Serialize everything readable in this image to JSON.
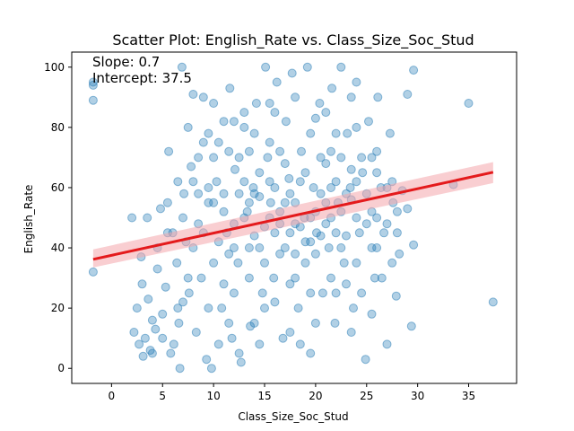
{
  "chart_data": {
    "type": "scatter",
    "title": "Scatter Plot: English_Rate vs. Class_Size_Soc_Stud",
    "xlabel": "Class_Size_Soc_Stud",
    "ylabel": "English_Rate",
    "xlim": [
      -3.9,
      39.7
    ],
    "ylim": [
      -5,
      105
    ],
    "xticks": [
      0,
      5,
      10,
      15,
      20,
      25,
      30,
      35
    ],
    "yticks": [
      0,
      20,
      40,
      60,
      80,
      100
    ],
    "grid": false,
    "annotations": [
      "Slope: 0.7",
      "Intercept: 37.5"
    ],
    "series": [
      {
        "kind": "points",
        "color": "#1f77b4",
        "alpha": 0.35,
        "points": [
          [
            -1.8,
            95
          ],
          [
            -1.8,
            94
          ],
          [
            -1.8,
            89
          ],
          [
            -1.8,
            32
          ],
          [
            2,
            50
          ],
          [
            2.2,
            12
          ],
          [
            2.5,
            20
          ],
          [
            2.7,
            8
          ],
          [
            2.9,
            37
          ],
          [
            3.1,
            4
          ],
          [
            3.3,
            10
          ],
          [
            3.5,
            50
          ],
          [
            3.6,
            23
          ],
          [
            3.8,
            6
          ],
          [
            4,
            16
          ],
          [
            4.3,
            13
          ],
          [
            4.5,
            33
          ],
          [
            4.8,
            53
          ],
          [
            5,
            10
          ],
          [
            5.3,
            27
          ],
          [
            5.6,
            72
          ],
          [
            5.8,
            5
          ],
          [
            6.1,
            8
          ],
          [
            6.4,
            35
          ],
          [
            6.6,
            15
          ],
          [
            6.7,
            0
          ],
          [
            6.9,
            100
          ],
          [
            7.1,
            58
          ],
          [
            7.3,
            42
          ],
          [
            7.6,
            25
          ],
          [
            7.8,
            67
          ],
          [
            8,
            91
          ],
          [
            8.3,
            12
          ],
          [
            8.5,
            48
          ],
          [
            8.8,
            30
          ],
          [
            9,
            90
          ],
          [
            9.3,
            3
          ],
          [
            9.5,
            55
          ],
          [
            9.8,
            0
          ],
          [
            10,
            88
          ],
          [
            10.3,
            62
          ],
          [
            10.5,
            75
          ],
          [
            10.8,
            20
          ],
          [
            11,
            58
          ],
          [
            11.3,
            45
          ],
          [
            11.6,
            93
          ],
          [
            11.8,
            10
          ],
          [
            12.1,
            66
          ],
          [
            12.4,
            35
          ],
          [
            12.7,
            2
          ],
          [
            13,
            80
          ],
          [
            13.3,
            52
          ],
          [
            13.6,
            14
          ],
          [
            13.9,
            60
          ],
          [
            14.2,
            88
          ],
          [
            14.5,
            40
          ],
          [
            14.8,
            25
          ],
          [
            15.1,
            100
          ],
          [
            15.3,
            70
          ],
          [
            15.6,
            55
          ],
          [
            15.9,
            30
          ],
          [
            16.2,
            95
          ],
          [
            16.5,
            48
          ],
          [
            16.8,
            10
          ],
          [
            17.1,
            82
          ],
          [
            17.4,
            63
          ],
          [
            17.7,
            98
          ],
          [
            18,
            38
          ],
          [
            18.3,
            20
          ],
          [
            18.6,
            72
          ],
          [
            18.9,
            50
          ],
          [
            19.2,
            100
          ],
          [
            19.5,
            5
          ],
          [
            19.8,
            60
          ],
          [
            20.1,
            45
          ],
          [
            20.4,
            88
          ],
          [
            20.7,
            25
          ],
          [
            21,
            68
          ],
          [
            21.3,
            40
          ],
          [
            21.6,
            93
          ],
          [
            21.9,
            15
          ],
          [
            22.2,
            55
          ],
          [
            22.5,
            100
          ],
          [
            22.8,
            35
          ],
          [
            23.1,
            78
          ],
          [
            23.4,
            60
          ],
          [
            23.7,
            20
          ],
          [
            24,
            95
          ],
          [
            24.3,
            45
          ],
          [
            24.6,
            65
          ],
          [
            24.9,
            3
          ],
          [
            25.2,
            82
          ],
          [
            25.5,
            52
          ],
          [
            25.8,
            30
          ],
          [
            26.1,
            90
          ],
          [
            26.4,
            60
          ],
          [
            26.7,
            45
          ],
          [
            27,
            8
          ],
          [
            27.3,
            78
          ],
          [
            27.6,
            55
          ],
          [
            27.9,
            24
          ],
          [
            28.2,
            38
          ],
          [
            28.5,
            59
          ],
          [
            29,
            91
          ],
          [
            29.4,
            14
          ],
          [
            29.6,
            99
          ],
          [
            29.6,
            41
          ],
          [
            33.5,
            61
          ],
          [
            35,
            88
          ],
          [
            37.4,
            22
          ],
          [
            12.5,
            58
          ],
          [
            13.5,
            55
          ],
          [
            14.5,
            57
          ],
          [
            15.5,
            50
          ],
          [
            16.5,
            52
          ],
          [
            17.5,
            45
          ],
          [
            18.5,
            47
          ],
          [
            19.5,
            42
          ],
          [
            20.5,
            44
          ],
          [
            21.5,
            50
          ],
          [
            22.5,
            52
          ],
          [
            23.5,
            56
          ],
          [
            12,
            48
          ],
          [
            14,
            44
          ],
          [
            16,
            60
          ],
          [
            18,
            55
          ],
          [
            20,
            38
          ],
          [
            22,
            62
          ],
          [
            24,
            50
          ],
          [
            11,
            52
          ],
          [
            13,
            62
          ],
          [
            15,
            47
          ],
          [
            17,
            40
          ],
          [
            19,
            65
          ],
          [
            21,
            48
          ],
          [
            23,
            44
          ],
          [
            10.5,
            42
          ],
          [
            12.5,
            70
          ],
          [
            14.5,
            65
          ],
          [
            16.5,
            38
          ],
          [
            18.5,
            62
          ],
          [
            20.5,
            70
          ],
          [
            22.5,
            40
          ],
          [
            24.5,
            70
          ],
          [
            26,
            50
          ],
          [
            9.5,
            60
          ],
          [
            11.5,
            38
          ],
          [
            13.5,
            30
          ],
          [
            15.5,
            75
          ],
          [
            17.5,
            28
          ],
          [
            19.5,
            78
          ],
          [
            21.5,
            30
          ],
          [
            23.5,
            66
          ],
          [
            25.5,
            40
          ],
          [
            8.5,
            70
          ],
          [
            10,
            35
          ],
          [
            12,
            25
          ],
          [
            14,
            78
          ],
          [
            16,
            85
          ],
          [
            18,
            30
          ],
          [
            20,
            83
          ],
          [
            22,
            25
          ],
          [
            24,
            80
          ],
          [
            26,
            65
          ],
          [
            7,
            50
          ],
          [
            9,
            45
          ],
          [
            11,
            28
          ],
          [
            13,
            85
          ],
          [
            15,
            20
          ],
          [
            17,
            68
          ],
          [
            19,
            35
          ],
          [
            21,
            85
          ],
          [
            23,
            28
          ],
          [
            25,
            58
          ],
          [
            27,
            48
          ],
          [
            6.5,
            62
          ],
          [
            8,
            40
          ],
          [
            10,
            70
          ],
          [
            12,
            82
          ],
          [
            14,
            15
          ],
          [
            16,
            22
          ],
          [
            18,
            90
          ],
          [
            20,
            15
          ],
          [
            22,
            78
          ],
          [
            24,
            35
          ],
          [
            26,
            72
          ],
          [
            28,
            52
          ],
          [
            5.5,
            45
          ],
          [
            7.5,
            30
          ],
          [
            9.5,
            20
          ],
          [
            11.5,
            15
          ],
          [
            13.5,
            40
          ],
          [
            15.5,
            88
          ],
          [
            17.5,
            12
          ],
          [
            19.5,
            25
          ],
          [
            21.5,
            60
          ],
          [
            23.5,
            90
          ],
          [
            25.5,
            18
          ],
          [
            27.5,
            62
          ],
          [
            4.5,
            40
          ],
          [
            5.5,
            55
          ],
          [
            6.5,
            20
          ],
          [
            7.5,
            80
          ],
          [
            8.5,
            58
          ],
          [
            9.5,
            78
          ],
          [
            10.5,
            8
          ],
          [
            11.5,
            72
          ],
          [
            12.5,
            5
          ],
          [
            13.5,
            72
          ],
          [
            14.5,
            8
          ],
          [
            15.5,
            62
          ],
          [
            16.5,
            72
          ],
          [
            17.5,
            58
          ],
          [
            18.5,
            8
          ],
          [
            19.5,
            50
          ],
          [
            20.5,
            58
          ],
          [
            21.5,
            72
          ],
          [
            22.5,
            70
          ],
          [
            23.5,
            12
          ],
          [
            24.5,
            25
          ],
          [
            25.5,
            70
          ],
          [
            26.5,
            30
          ],
          [
            27.5,
            35
          ],
          [
            3,
            28
          ],
          [
            4,
            5
          ],
          [
            5,
            18
          ],
          [
            6,
            45
          ],
          [
            7,
            22
          ],
          [
            8,
            62
          ],
          [
            9,
            75
          ],
          [
            10,
            55
          ],
          [
            11,
            82
          ],
          [
            12,
            40
          ],
          [
            13,
            50
          ],
          [
            14,
            58
          ],
          [
            15,
            35
          ],
          [
            16,
            45
          ],
          [
            17,
            55
          ],
          [
            18,
            48
          ],
          [
            19,
            42
          ],
          [
            20,
            52
          ],
          [
            21,
            55
          ],
          [
            22,
            45
          ],
          [
            23,
            58
          ],
          [
            24,
            62
          ],
          [
            25,
            48
          ],
          [
            26,
            40
          ],
          [
            27,
            60
          ],
          [
            28,
            45
          ],
          [
            29,
            53
          ]
        ]
      },
      {
        "kind": "regression",
        "color": "#e41a1c",
        "band_color": "#f4a6ab",
        "x": [
          -1.8,
          37.4
        ],
        "y": [
          36.2,
          65.1
        ],
        "ci_start": [
          33.5,
          39.5
        ],
        "ci_end": [
          61.5,
          68.5
        ]
      }
    ]
  }
}
